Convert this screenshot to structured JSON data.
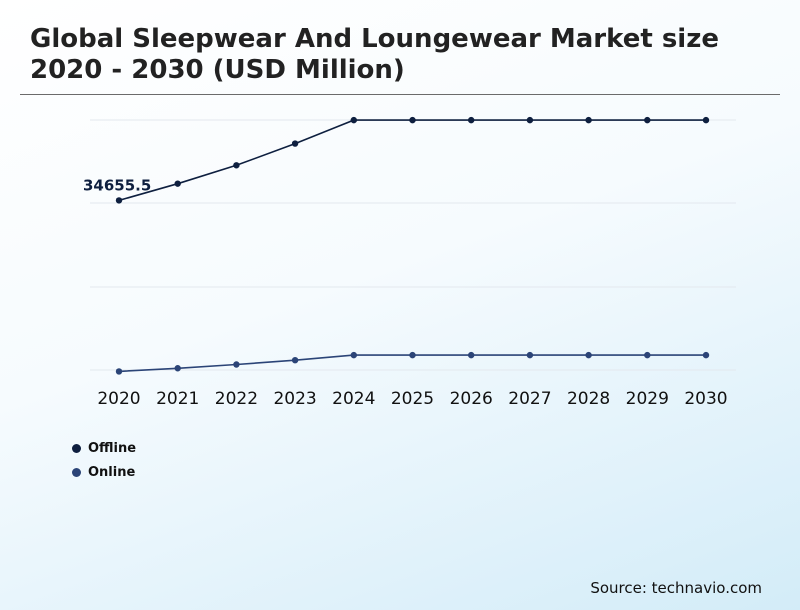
{
  "header": {
    "title": "Global Sleepwear And Loungewear Market size 2020 - 2030 (USD Million)"
  },
  "footer": {
    "source": "Source: technavio.com"
  },
  "chart_data": {
    "type": "line",
    "title": "Global Sleepwear And Loungewear Market size 2020 - 2030 (USD Million)",
    "x": [
      "2020",
      "2021",
      "2022",
      "2023",
      "2024",
      "2025",
      "2026",
      "2027",
      "2028",
      "2029",
      "2030"
    ],
    "series": [
      {
        "name": "Offline",
        "color": "#0e1f3f",
        "values": [
          34655.5,
          35550,
          36530,
          37690,
          38940,
          38940,
          38940,
          38940,
          38940,
          38940,
          38940
        ],
        "data_labels": [
          "34655.5",
          "",
          "",
          "",
          "",
          "",
          "",
          "",
          "",
          "",
          ""
        ]
      },
      {
        "name": "Online",
        "color": "#2b4477",
        "values": [
          25530,
          25700,
          25900,
          26130,
          26400,
          26400,
          26400,
          26400,
          26400,
          26400,
          26400
        ]
      }
    ],
    "ylim": [
      25500,
      39000
    ],
    "y_axis_visible": false,
    "grid": true,
    "legend_position": "bottom-left",
    "xlabel": "",
    "ylabel": ""
  }
}
